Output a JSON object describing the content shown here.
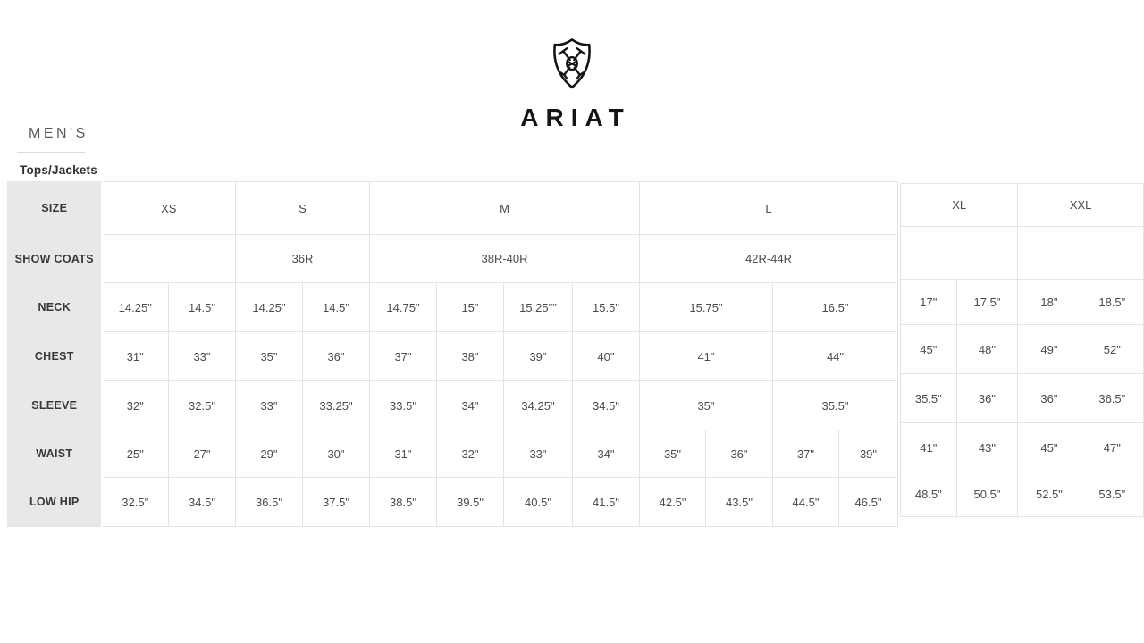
{
  "brand": {
    "name": "ARIAT",
    "logo_icon": "ariat-shield-icon"
  },
  "page": {
    "section_title": "MEN'S",
    "subsection_title": "Tops/Jackets"
  },
  "colors": {
    "row_label_bg": "#e8e8e8",
    "table_border": "#e3e3e3",
    "cell_text": "#4a4a4a",
    "row_label_text": "#383838",
    "brand_color": "#141414"
  },
  "size_chart": {
    "main_table": {
      "rows": [
        {
          "label": "SIZE",
          "cells": [
            {
              "text": "XS",
              "span": 2
            },
            {
              "text": "S",
              "span": 2
            },
            {
              "text": "M",
              "span": 4
            },
            {
              "text": "L",
              "span": 4
            }
          ]
        },
        {
          "label": "SHOW COATS",
          "cells": [
            {
              "text": "",
              "span": 2
            },
            {
              "text": "36R",
              "span": 2
            },
            {
              "text": "38R-40R",
              "span": 4
            },
            {
              "text": "42R-44R",
              "span": 4
            }
          ]
        },
        {
          "label": "NECK",
          "cells": [
            {
              "text": "14.25\""
            },
            {
              "text": "14.5\""
            },
            {
              "text": "14.25\""
            },
            {
              "text": "14.5\""
            },
            {
              "text": "14.75\""
            },
            {
              "text": "15\""
            },
            {
              "text": "15.25\"\""
            },
            {
              "text": "15.5\""
            },
            {
              "text": "15.75\"",
              "span": 2
            },
            {
              "text": "16.5\"",
              "span": 2
            }
          ]
        },
        {
          "label": "CHEST",
          "cells": [
            {
              "text": "31\""
            },
            {
              "text": "33\""
            },
            {
              "text": "35\""
            },
            {
              "text": "36\""
            },
            {
              "text": "37\""
            },
            {
              "text": "38\""
            },
            {
              "text": "39\""
            },
            {
              "text": "40\""
            },
            {
              "text": "41\"",
              "span": 2
            },
            {
              "text": "44\"",
              "span": 2
            }
          ]
        },
        {
          "label": "SLEEVE",
          "cells": [
            {
              "text": "32\""
            },
            {
              "text": "32.5\""
            },
            {
              "text": "33\""
            },
            {
              "text": "33.25\""
            },
            {
              "text": "33.5\""
            },
            {
              "text": "34\""
            },
            {
              "text": "34.25\""
            },
            {
              "text": "34.5\""
            },
            {
              "text": "35\"",
              "span": 2
            },
            {
              "text": "35.5\"",
              "span": 2
            }
          ]
        },
        {
          "label": "WAIST",
          "cells": [
            {
              "text": "25\""
            },
            {
              "text": "27\""
            },
            {
              "text": "29\""
            },
            {
              "text": "30\""
            },
            {
              "text": "31\""
            },
            {
              "text": "32\""
            },
            {
              "text": "33\""
            },
            {
              "text": "34\""
            },
            {
              "text": "35\""
            },
            {
              "text": "36\""
            },
            {
              "text": "37\""
            },
            {
              "text": "39\""
            }
          ]
        },
        {
          "label": "LOW HIP",
          "cells": [
            {
              "text": "32.5\""
            },
            {
              "text": "34.5\""
            },
            {
              "text": "36.5\""
            },
            {
              "text": "37.5\""
            },
            {
              "text": "38.5\""
            },
            {
              "text": "39.5\""
            },
            {
              "text": "40.5\""
            },
            {
              "text": "41.5\""
            },
            {
              "text": "42.5\""
            },
            {
              "text": "43.5\""
            },
            {
              "text": "44.5\""
            },
            {
              "text": "46.5\""
            }
          ]
        }
      ]
    },
    "xl_table": {
      "rows": [
        {
          "cells": [
            {
              "text": "XL",
              "span": 2
            },
            {
              "text": "XXL",
              "span": 2
            }
          ]
        },
        {
          "cells": [
            {
              "text": "",
              "span": 2
            },
            {
              "text": "",
              "span": 2
            }
          ]
        },
        {
          "cells": [
            {
              "text": "17\""
            },
            {
              "text": "17.5\""
            },
            {
              "text": "18\""
            },
            {
              "text": "18.5\""
            }
          ]
        },
        {
          "cells": [
            {
              "text": "45\""
            },
            {
              "text": "48\""
            },
            {
              "text": "49\""
            },
            {
              "text": "52\""
            }
          ]
        },
        {
          "cells": [
            {
              "text": "35.5\""
            },
            {
              "text": "36\""
            },
            {
              "text": "36\""
            },
            {
              "text": "36.5\""
            }
          ]
        },
        {
          "cells": [
            {
              "text": "41\""
            },
            {
              "text": "43\""
            },
            {
              "text": "45\""
            },
            {
              "text": "47\""
            }
          ]
        },
        {
          "cells": [
            {
              "text": "48.5\""
            },
            {
              "text": "50.5\""
            },
            {
              "text": "52.5\""
            },
            {
              "text": "53.5\""
            }
          ]
        }
      ]
    }
  }
}
